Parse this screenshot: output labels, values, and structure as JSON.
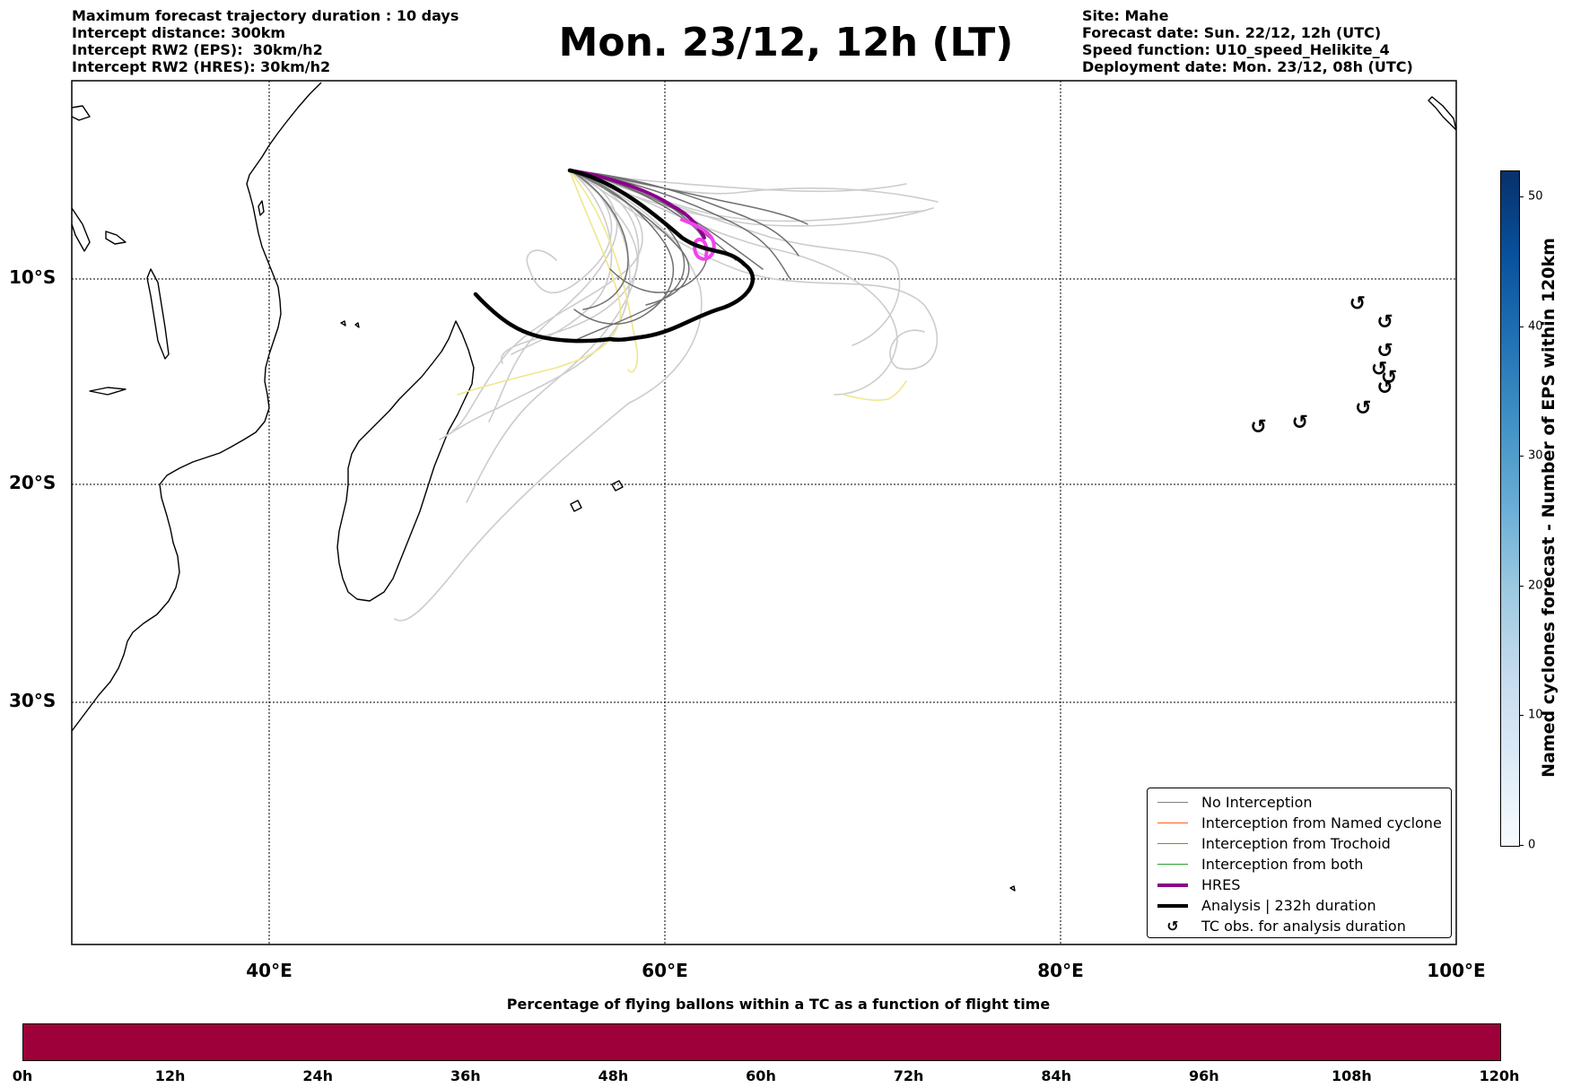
{
  "header": {
    "left": [
      "Maximum forecast trajectory duration : 10 days",
      "Intercept distance: 300km",
      "Intercept RW2 (EPS):  30km/h2",
      "Intercept RW2 (HRES): 30km/h2"
    ],
    "title": "Mon. 23/12, 12h (LT)",
    "right": [
      "Site: Mahe",
      "Forecast date: Sun. 22/12, 12h (UTC)",
      "Speed function: U10_speed_Helikite_4",
      "Deployment date: Mon. 23/12, 08h (UTC)"
    ]
  },
  "map": {
    "lat_labels": [
      "10°S",
      "20°S",
      "30°S"
    ],
    "lon_labels": [
      "40°E",
      "60°E",
      "80°E",
      "100°E"
    ],
    "extent": {
      "lon": [
        30,
        100
      ],
      "lat": [
        0,
        -40
      ]
    },
    "gridlines": true
  },
  "legend": {
    "items": [
      {
        "label": "No Interception",
        "color": "#808080",
        "style": "thin-line"
      },
      {
        "label": "Interception from Named cyclone",
        "color": "#ff5f1f",
        "style": "thin-line"
      },
      {
        "label": "Interception from Trochoid",
        "color": "#8b8b00",
        "style": "thin-line"
      },
      {
        "label": "Interception from both",
        "color": "#2ca02c",
        "style": "thin-line"
      },
      {
        "label": "HRES",
        "color": "#8b008b",
        "style": "thick-line"
      },
      {
        "label": "Analysis | 232h duration",
        "color": "#000000",
        "style": "thick-line"
      },
      {
        "label": "TC obs. for analysis duration",
        "color": "#000000",
        "style": "cyclone-icon"
      }
    ]
  },
  "colorbar": {
    "label": "Named cyclones forecast - Number of EPS within 120km",
    "ticks": [
      "0",
      "10",
      "20",
      "30",
      "40",
      "50"
    ],
    "range": [
      0,
      52
    ],
    "colormap": "Blues"
  },
  "flight_bar": {
    "title": "Percentage of flying ballons within a TC as a function of flight time",
    "ticks": [
      "0h",
      "12h",
      "24h",
      "36h",
      "48h",
      "60h",
      "72h",
      "84h",
      "96h",
      "108h",
      "120h"
    ],
    "fill_color": "#9e003a"
  },
  "tc_observations": [
    {
      "lon": 95.0,
      "lat": -11.5
    },
    {
      "lon": 96.4,
      "lat": -12.4
    },
    {
      "lon": 96.4,
      "lat": -13.8
    },
    {
      "lon": 96.1,
      "lat": -14.7
    },
    {
      "lon": 96.6,
      "lat": -15.1
    },
    {
      "lon": 96.4,
      "lat": -15.6
    },
    {
      "lon": 95.3,
      "lat": -16.6
    },
    {
      "lon": 92.1,
      "lat": -17.3
    },
    {
      "lon": 90.0,
      "lat": -17.5
    }
  ]
}
